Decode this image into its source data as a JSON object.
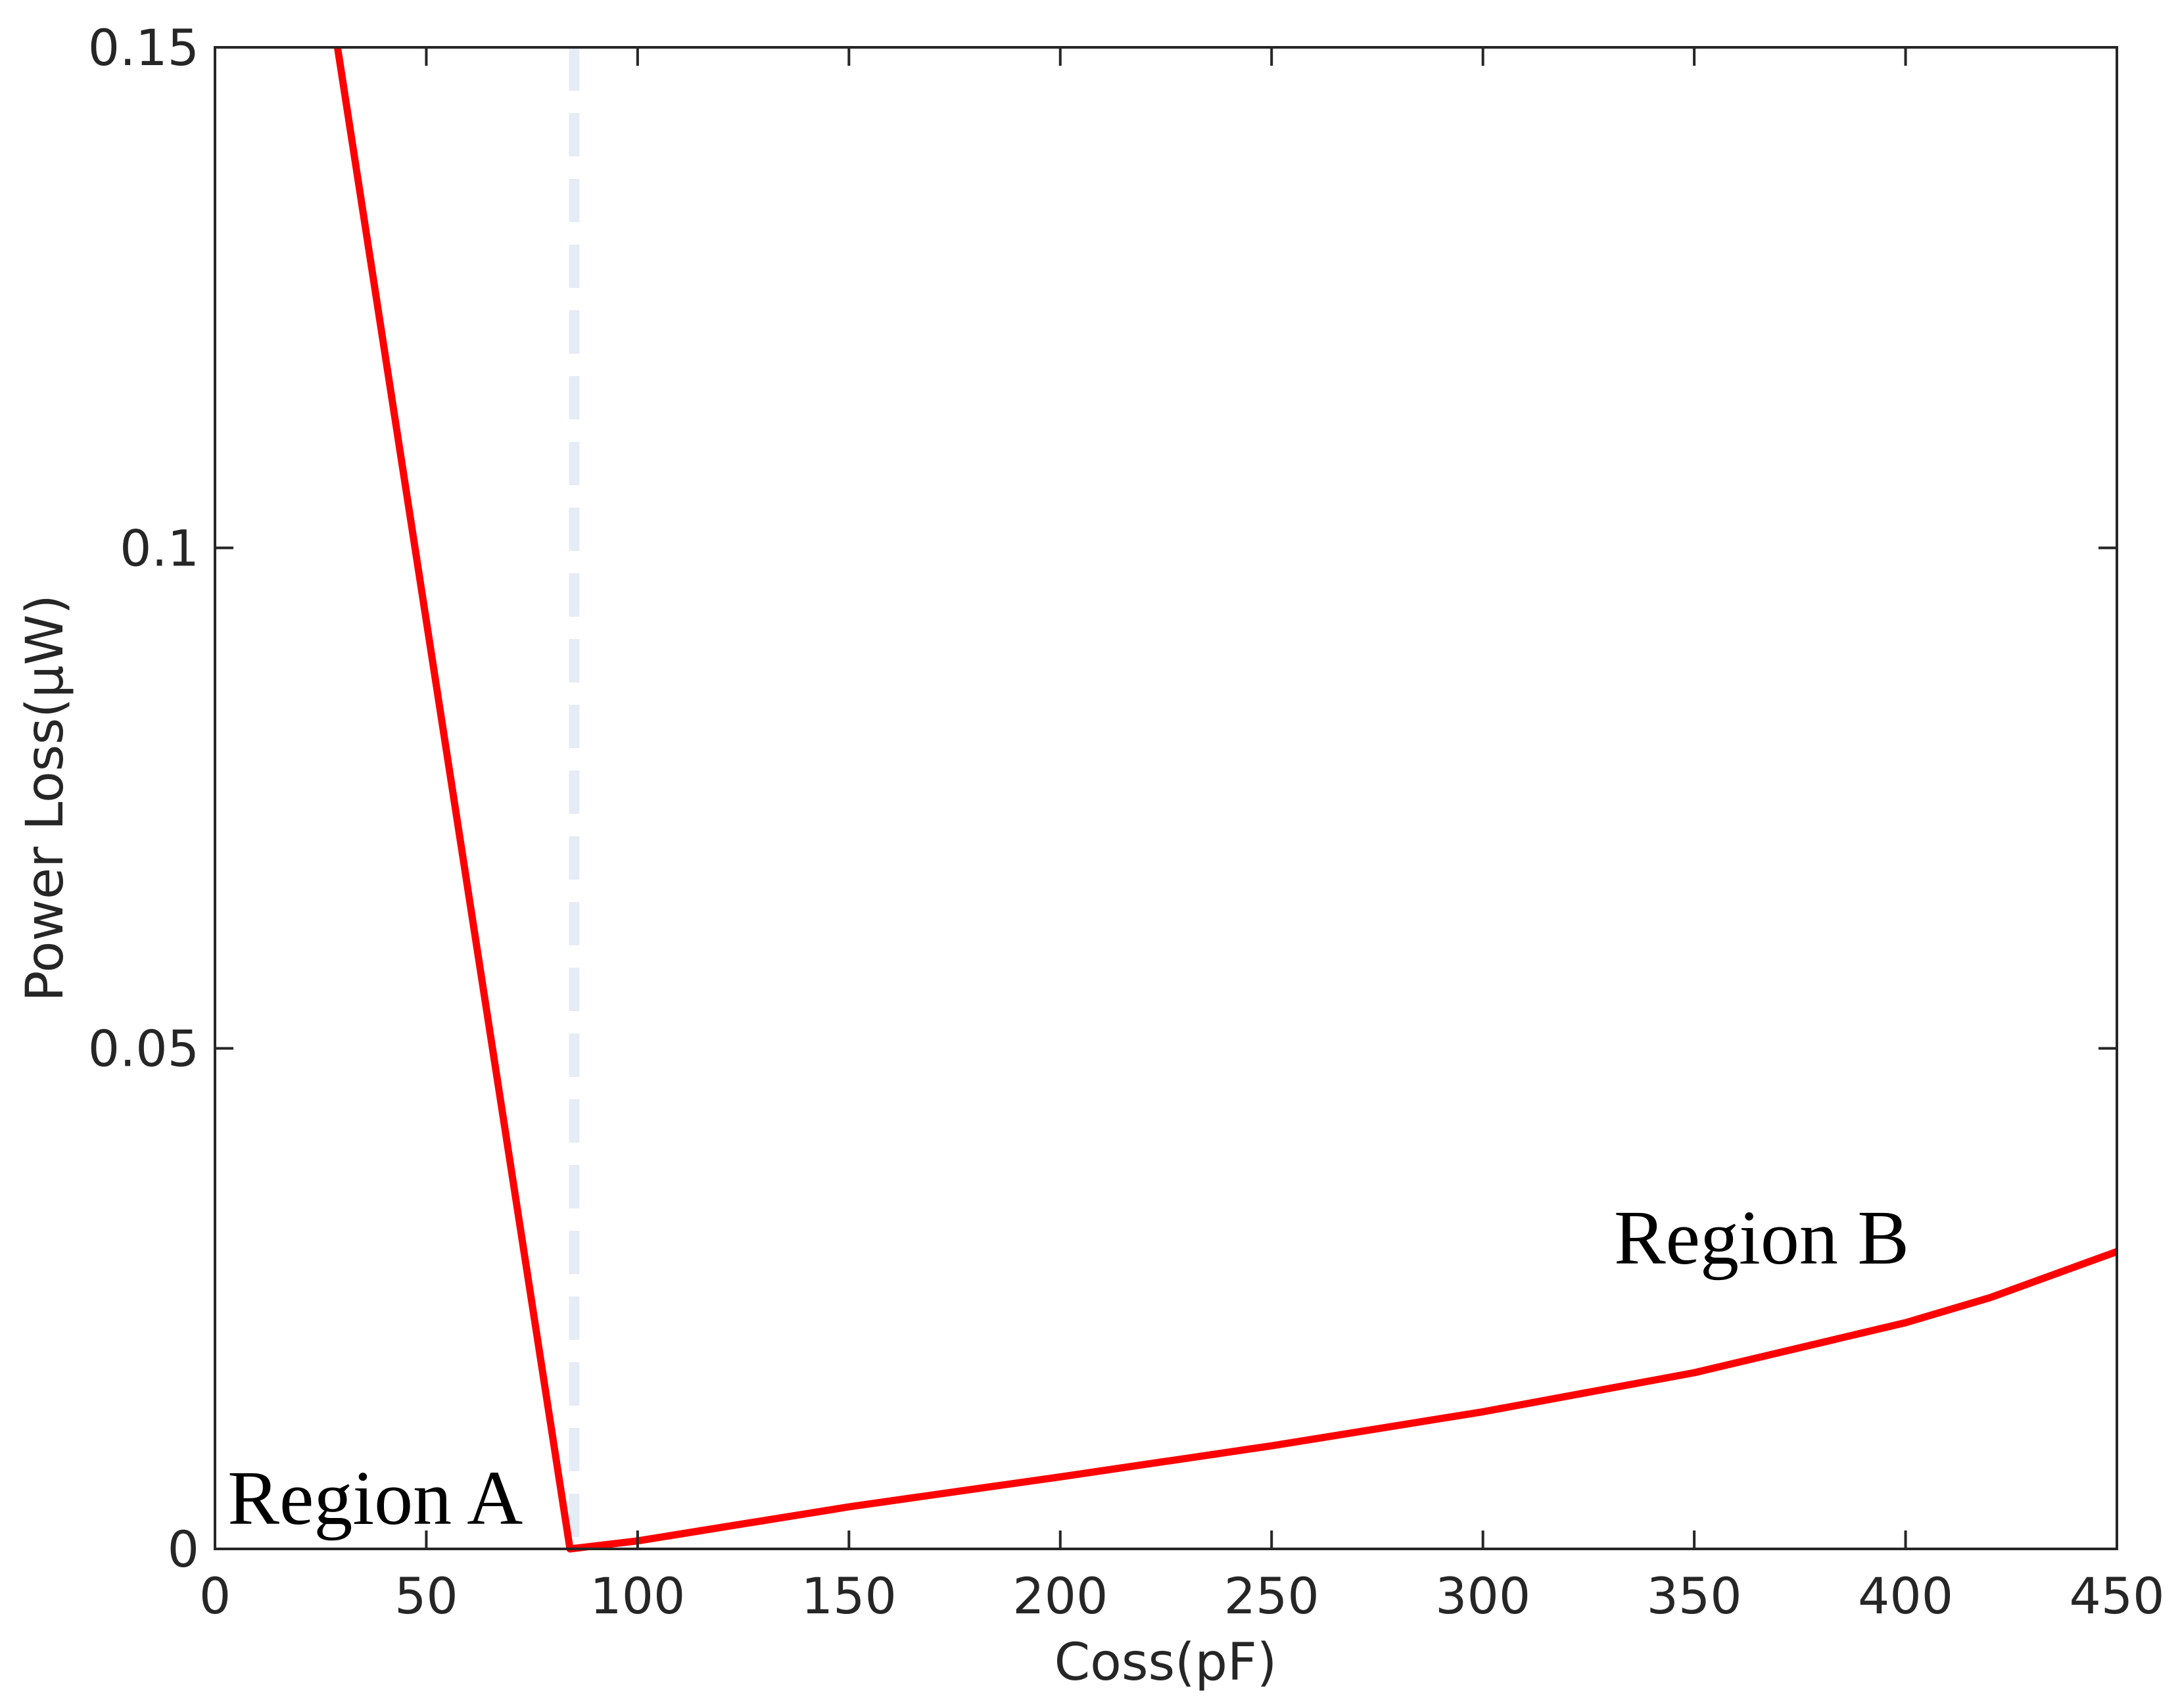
{
  "chart_data": {
    "type": "line",
    "xlabel": "Coss(pF)",
    "ylabel": "Power Loss(μW)",
    "xlim": [
      0,
      450
    ],
    "ylim": [
      0,
      0.15
    ],
    "xticks": [
      0,
      50,
      100,
      150,
      200,
      250,
      300,
      350,
      400,
      450
    ],
    "xtick_labels": [
      "0",
      "50",
      "100",
      "150",
      "200",
      "250",
      "300",
      "350",
      "400",
      "450"
    ],
    "yticks": [
      0,
      0.05,
      0.1,
      0.15
    ],
    "ytick_labels": [
      "0",
      "0.05",
      "0.1",
      "0.15"
    ],
    "grid": false,
    "series": [
      {
        "color": "#ff0000",
        "x": [
          29,
          84,
          100,
          150,
          200,
          250,
          300,
          350,
          400,
          420,
          450
        ],
        "y": [
          0.15,
          0,
          0.0008,
          0.0042,
          0.0072,
          0.0103,
          0.0137,
          0.0176,
          0.0226,
          0.0251,
          0.0297
        ]
      }
    ],
    "reference_lines": [
      {
        "orientation": "vertical",
        "x": 85,
        "style": "dashed",
        "color": "#e6ecf5"
      }
    ],
    "annotations": [
      {
        "text": "Region A",
        "x": 3,
        "y": 0.0025
      },
      {
        "text": "Region B",
        "x": 331,
        "y": 0.0285
      }
    ]
  }
}
